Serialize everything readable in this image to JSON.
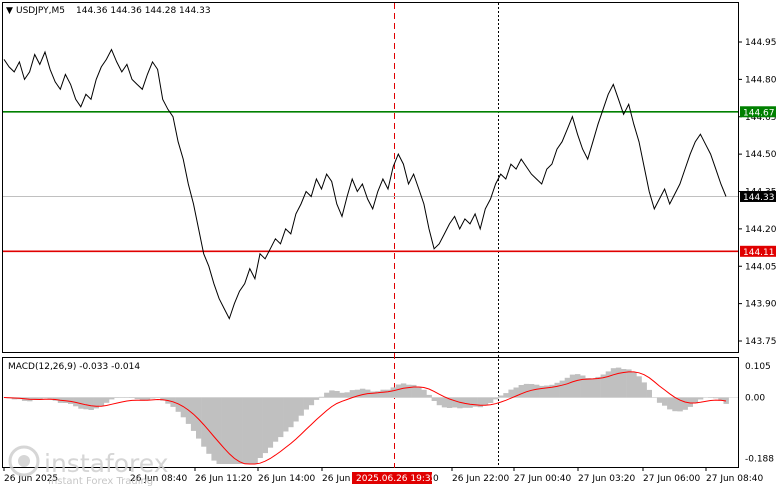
{
  "header": {
    "symbol": "USDJPY,M5",
    "ohlc": "144.36 144.36 144.28 144.33"
  },
  "macd": {
    "label": "MACD(12,26,9) -0.033 -0.014",
    "axis_labels": [
      "0.105",
      "0.00",
      "-0.188"
    ],
    "axis_values": [
      0.105,
      0.0,
      -0.188
    ]
  },
  "price_axis": {
    "labels": [
      "144.95",
      "144.80",
      "144.65",
      "144.50",
      "144.35",
      "144.20",
      "144.05",
      "143.90",
      "143.75"
    ],
    "values": [
      144.95,
      144.8,
      144.65,
      144.5,
      144.35,
      144.2,
      144.05,
      143.9,
      143.75
    ]
  },
  "levels": {
    "resistance": {
      "value": 144.67,
      "label": "144.67",
      "color": "#008000"
    },
    "support": {
      "value": 144.11,
      "label": "144.11",
      "color": "#e00000"
    },
    "current": {
      "value": 144.33,
      "label": "144.33"
    }
  },
  "time_axis": {
    "labels": [
      "26 Jun 2025",
      "26 Jun 08:40",
      "26 Jun 11:20",
      "26 Jun 14:00",
      "26 Jun",
      "26 Jun 22:00",
      "27 Jun 00:40",
      "27 Jun 03:20",
      "27 Jun 06:00",
      "27 Jun 08:40"
    ],
    "highlight": "2025.06.26 19:35",
    "highlight_tail": "0"
  },
  "watermark": {
    "brand": "instaforex",
    "tagline": "Instant Forex Trading"
  },
  "colors": {
    "price_line": "#000000",
    "macd_hist": "#c0c0c0",
    "macd_signal": "#ff0000",
    "vline": "#e00000",
    "grid": "#000000"
  },
  "chart_data": {
    "type": "line",
    "series": [
      {
        "values": [
          144.88,
          144.85,
          144.83,
          144.87,
          144.8,
          144.83,
          144.9,
          144.86,
          144.91,
          144.84,
          144.79,
          144.76,
          144.82,
          144.78,
          144.72,
          144.69,
          144.74,
          144.72,
          144.8,
          144.85,
          144.88,
          144.92,
          144.87,
          144.83,
          144.86,
          144.8,
          144.78,
          144.76,
          144.82,
          144.87,
          144.84,
          144.72,
          144.68,
          144.65,
          144.55,
          144.48,
          144.38,
          144.3,
          144.2,
          144.1,
          144.05,
          143.98,
          143.92,
          143.88,
          143.84,
          143.9,
          143.95,
          143.98,
          144.04,
          144.0,
          144.1,
          144.08,
          144.12,
          144.16,
          144.14,
          144.2,
          144.18,
          144.26,
          144.3,
          144.35,
          144.33,
          144.4,
          144.36,
          144.42,
          144.39,
          144.3,
          144.25,
          144.33,
          144.4,
          144.35,
          144.38,
          144.32,
          144.28,
          144.35,
          144.4,
          144.36,
          144.45,
          144.5,
          144.46,
          144.38,
          144.42,
          144.36,
          144.3,
          144.2,
          144.12,
          144.14,
          144.18,
          144.22,
          144.25,
          144.2,
          144.24,
          144.22,
          144.26,
          144.2,
          144.28,
          144.32,
          144.38,
          144.42,
          144.4,
          144.46,
          144.44,
          144.48,
          144.45,
          144.42,
          144.4,
          144.38,
          144.44,
          144.46,
          144.52,
          144.55,
          144.6,
          144.65,
          144.58,
          144.52,
          144.48,
          144.55,
          144.62,
          144.68,
          144.74,
          144.78,
          144.72,
          144.66,
          144.7,
          144.62,
          144.55,
          144.45,
          144.35,
          144.28,
          144.32,
          144.36,
          144.3,
          144.34,
          144.38,
          144.44,
          144.5,
          144.55,
          144.58,
          144.54,
          144.5,
          144.44,
          144.38,
          144.33
        ]
      }
    ]
  }
}
